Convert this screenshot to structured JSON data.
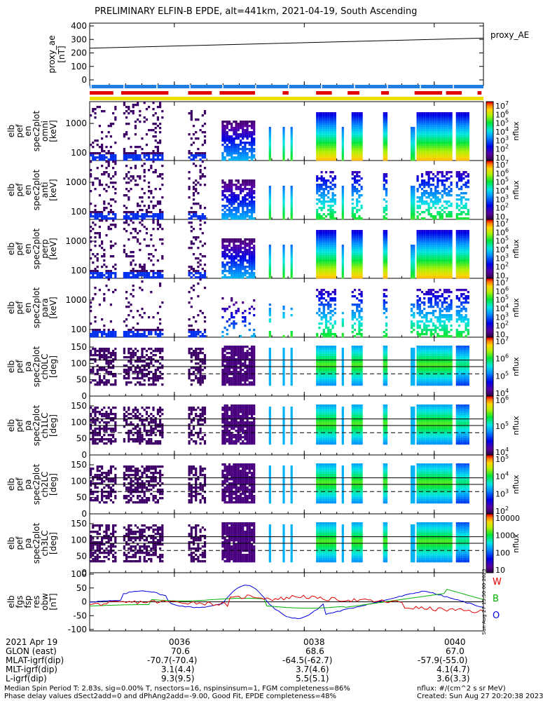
{
  "title": "PRELIMINARY ELFIN-B EPDE, alt=441km, 2021-04-19, South Ascending",
  "colors": {
    "bar_blue": "#1e7fe0",
    "bar_red": "#e00000",
    "bar_yellow": "#f0e000",
    "line_black": "#000000"
  },
  "chart_data": [
    {
      "type": "line",
      "panel": "proxy_ae",
      "ylabel_lines": [
        "proxy_ae",
        "[nT]"
      ],
      "legend": "proxy_AE",
      "y_ticks": [
        "400",
        "300",
        "200",
        "100",
        "0"
      ],
      "ylim": [
        0,
        400
      ],
      "x_range": [
        0.0,
        1.0
      ],
      "series": [
        {
          "x": [
            0,
            1
          ],
          "values": [
            235,
            310
          ]
        }
      ]
    },
    {
      "type": "heatmap",
      "panel": "pef_en_spec2plot_omni",
      "ylabel_lines": [
        "elb",
        "pef",
        "en",
        "spec2plot",
        "omni",
        "[keV]"
      ],
      "y_ticks": [
        "1000",
        "100"
      ],
      "colorbar": {
        "label": "nflux",
        "ticks": [
          "10^7",
          "10^6",
          "10^5",
          "10^4",
          "10^3",
          "10^2",
          "10"
        ]
      }
    },
    {
      "type": "heatmap",
      "panel": "pef_en_spec2plot_anti",
      "ylabel_lines": [
        "elb",
        "pef",
        "en",
        "spec2plot",
        "anti",
        "[keV]"
      ],
      "y_ticks": [
        "1000",
        "100"
      ],
      "colorbar": {
        "label": "nflux",
        "ticks": [
          "10^7",
          "10^6",
          "10^5",
          "10^4",
          "10^3",
          "10^2",
          "10"
        ]
      }
    },
    {
      "type": "heatmap",
      "panel": "pef_en_spec2plot_perp",
      "ylabel_lines": [
        "elb",
        "pef",
        "en",
        "spec2plot",
        "perp",
        "[keV]"
      ],
      "y_ticks": [
        "1000",
        "100"
      ],
      "colorbar": {
        "label": "nflux",
        "ticks": [
          "10^7",
          "10^6",
          "10^5",
          "10^4",
          "10^3",
          "10^2",
          "10"
        ]
      }
    },
    {
      "type": "heatmap",
      "panel": "pef_en_spec2plot_para",
      "ylabel_lines": [
        "elb",
        "pef",
        "en",
        "spec2plot",
        "para",
        "[keV]"
      ],
      "y_ticks": [
        "1000",
        "100"
      ],
      "colorbar": {
        "label": "nflux",
        "ticks": [
          "10^7",
          "10^6",
          "10^5",
          "10^4",
          "10^3",
          "10^2",
          "10"
        ]
      }
    },
    {
      "type": "heatmap",
      "panel": "pef_pa_spec2plot_ch0LC",
      "ylabel_lines": [
        "elb",
        "pef",
        "pa",
        "spec2plot",
        "ch0LC",
        "[deg]"
      ],
      "y_ticks": [
        "150",
        "100",
        "50",
        "0"
      ],
      "colorbar": {
        "label": "nflux",
        "ticks": [
          "10^7",
          "10^6",
          "10^5",
          "10^4"
        ]
      }
    },
    {
      "type": "heatmap",
      "panel": "pef_pa_spec2plot_ch1LC",
      "ylabel_lines": [
        "elb",
        "pef",
        "pa",
        "spec2plot",
        "ch1LC",
        "[deg]"
      ],
      "y_ticks": [
        "150",
        "100",
        "50",
        "0"
      ],
      "colorbar": {
        "label": "nflux",
        "ticks": [
          "10^6",
          "10^5",
          "10^4"
        ]
      }
    },
    {
      "type": "heatmap",
      "panel": "pef_pa_spec2plot_ch2LC",
      "ylabel_lines": [
        "elb",
        "pef",
        "pa",
        "spec2plot",
        "ch2LC",
        "[deg]"
      ],
      "y_ticks": [
        "150",
        "100",
        "50",
        "0"
      ],
      "colorbar": {
        "label": "nflux",
        "ticks": [
          "10^5",
          "10^4",
          "10^3",
          "10^2"
        ]
      }
    },
    {
      "type": "heatmap",
      "panel": "pef_pa_spec2plot_ch3LC",
      "ylabel_lines": [
        "elb",
        "pef",
        "pa",
        "spec2plot",
        "ch3LC",
        "[deg]"
      ],
      "y_ticks": [
        "150",
        "100",
        "50",
        "0"
      ],
      "colorbar": {
        "label": "nflux",
        "ticks": [
          "10000",
          "1000",
          "100",
          "10"
        ]
      }
    },
    {
      "type": "line",
      "panel": "fgs_fsp_res_obw",
      "ylabel_lines": [
        "elb",
        "fgs",
        "fsp",
        "res",
        "obw",
        "[nT]"
      ],
      "y_ticks": [
        "100",
        "50",
        "0",
        "-50",
        "-100"
      ],
      "ylim": [
        -100,
        100
      ],
      "legend_labels": [
        "W",
        "B",
        "O"
      ],
      "legend_colors": [
        "#e00000",
        "#00b000",
        "#0000e0"
      ],
      "side_note": "Sun Aug 27 15:50:00 2023"
    }
  ],
  "time_axis": {
    "row_labels": [
      "2021 Apr 19",
      "GLON (east)",
      "MLAT-igrf(dip)",
      "MLT-igrf(dip)",
      "L-igrf(dip)"
    ],
    "columns": [
      {
        "time": "0036",
        "vals": [
          "70.6",
          "-70.7(-70.4)",
          "3.1(4.4)",
          "9.3(9.5)"
        ]
      },
      {
        "time": "0038",
        "vals": [
          "68.6",
          "-64.5(-62.7)",
          "3.7(4.6)",
          "5.5(5.1)"
        ]
      },
      {
        "time": "0040",
        "vals": [
          "67.0",
          "-57.9(-55.0)",
          "4.1(4.7)",
          "3.6(3.3)"
        ]
      }
    ]
  },
  "footer": {
    "line1": "Median Spin Period T: 2.83s, sig=0.00% T, nsectors=16, nspinsinsum=1, FGM completeness=86%",
    "line2": "Phase delay values dSect2add=0 and dPhAng2add=-9.00, Good Fit, EPDE completeness=48%",
    "right1": "nflux: #/(cm^2 s sr MeV)",
    "right2": "Created: Sun Aug 27 20:20:38 2023"
  }
}
